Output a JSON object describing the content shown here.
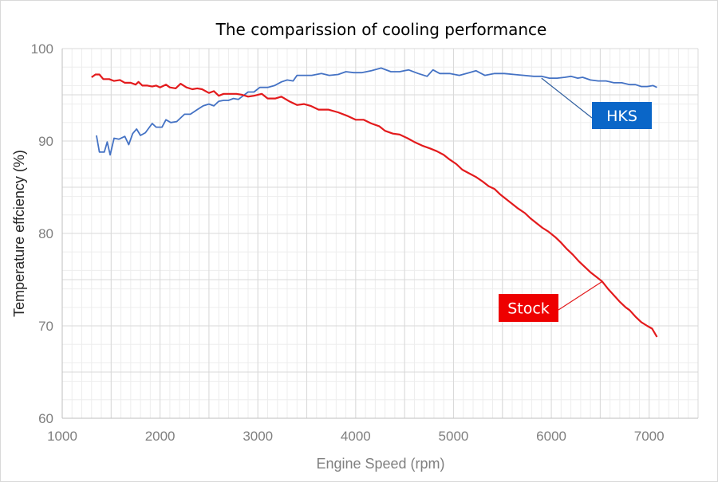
{
  "chart_data": {
    "type": "line",
    "title": "The comparission of cooling performance",
    "xlabel": "Engine Speed (rpm)",
    "ylabel": "Temperature effciency (%)",
    "xlim": [
      1000,
      7500
    ],
    "ylim": [
      60,
      100
    ],
    "x_ticks": [
      1000,
      2000,
      3000,
      4000,
      5000,
      6000,
      7000
    ],
    "y_ticks": [
      60,
      70,
      80,
      90,
      100
    ],
    "grid": true,
    "legend": "callouts",
    "series": [
      {
        "name": "HKS",
        "color": "#4472c4",
        "label_bg": "#0a66c8",
        "callout_anchor": [
          5900,
          96.8
        ],
        "points": [
          [
            1350,
            90.6
          ],
          [
            1380,
            88.8
          ],
          [
            1430,
            88.8
          ],
          [
            1460,
            89.9
          ],
          [
            1490,
            88.5
          ],
          [
            1530,
            90.3
          ],
          [
            1580,
            90.2
          ],
          [
            1640,
            90.5
          ],
          [
            1680,
            89.6
          ],
          [
            1720,
            90.8
          ],
          [
            1760,
            91.3
          ],
          [
            1800,
            90.6
          ],
          [
            1850,
            90.9
          ],
          [
            1920,
            91.9
          ],
          [
            1960,
            91.5
          ],
          [
            2020,
            91.5
          ],
          [
            2060,
            92.3
          ],
          [
            2110,
            92.0
          ],
          [
            2170,
            92.1
          ],
          [
            2250,
            92.9
          ],
          [
            2310,
            92.9
          ],
          [
            2380,
            93.4
          ],
          [
            2440,
            93.8
          ],
          [
            2500,
            94.0
          ],
          [
            2550,
            93.8
          ],
          [
            2600,
            94.3
          ],
          [
            2650,
            94.4
          ],
          [
            2700,
            94.4
          ],
          [
            2750,
            94.6
          ],
          [
            2800,
            94.5
          ],
          [
            2850,
            94.9
          ],
          [
            2900,
            95.3
          ],
          [
            2960,
            95.3
          ],
          [
            3020,
            95.8
          ],
          [
            3100,
            95.8
          ],
          [
            3170,
            96.0
          ],
          [
            3240,
            96.4
          ],
          [
            3300,
            96.6
          ],
          [
            3360,
            96.5
          ],
          [
            3400,
            97.1
          ],
          [
            3480,
            97.1
          ],
          [
            3550,
            97.1
          ],
          [
            3650,
            97.3
          ],
          [
            3730,
            97.1
          ],
          [
            3820,
            97.2
          ],
          [
            3900,
            97.5
          ],
          [
            3980,
            97.4
          ],
          [
            4060,
            97.4
          ],
          [
            4160,
            97.6
          ],
          [
            4260,
            97.9
          ],
          [
            4360,
            97.5
          ],
          [
            4450,
            97.5
          ],
          [
            4540,
            97.7
          ],
          [
            4640,
            97.3
          ],
          [
            4730,
            97.0
          ],
          [
            4790,
            97.7
          ],
          [
            4860,
            97.3
          ],
          [
            4960,
            97.3
          ],
          [
            5060,
            97.1
          ],
          [
            5160,
            97.4
          ],
          [
            5230,
            97.6
          ],
          [
            5320,
            97.1
          ],
          [
            5420,
            97.3
          ],
          [
            5520,
            97.3
          ],
          [
            5620,
            97.2
          ],
          [
            5720,
            97.1
          ],
          [
            5820,
            97.0
          ],
          [
            5900,
            97.0
          ],
          [
            5980,
            96.8
          ],
          [
            6060,
            96.8
          ],
          [
            6140,
            96.9
          ],
          [
            6200,
            97.0
          ],
          [
            6270,
            96.8
          ],
          [
            6320,
            96.9
          ],
          [
            6400,
            96.6
          ],
          [
            6480,
            96.5
          ],
          [
            6560,
            96.5
          ],
          [
            6640,
            96.3
          ],
          [
            6720,
            96.3
          ],
          [
            6800,
            96.1
          ],
          [
            6860,
            96.1
          ],
          [
            6920,
            95.9
          ],
          [
            6980,
            95.9
          ],
          [
            7040,
            96.0
          ],
          [
            7080,
            95.8
          ]
        ]
      },
      {
        "name": "Stock",
        "color": "#e31a1c",
        "label_bg": "#ee0000",
        "callout_anchor": [
          6520,
          74.8
        ],
        "points": [
          [
            1300,
            96.9
          ],
          [
            1340,
            97.2
          ],
          [
            1380,
            97.2
          ],
          [
            1420,
            96.7
          ],
          [
            1480,
            96.7
          ],
          [
            1530,
            96.5
          ],
          [
            1590,
            96.6
          ],
          [
            1640,
            96.3
          ],
          [
            1700,
            96.3
          ],
          [
            1750,
            96.1
          ],
          [
            1780,
            96.4
          ],
          [
            1820,
            96.0
          ],
          [
            1870,
            96.0
          ],
          [
            1920,
            95.9
          ],
          [
            1960,
            96.0
          ],
          [
            2000,
            95.8
          ],
          [
            2060,
            96.1
          ],
          [
            2100,
            95.8
          ],
          [
            2160,
            95.7
          ],
          [
            2210,
            96.2
          ],
          [
            2270,
            95.8
          ],
          [
            2330,
            95.6
          ],
          [
            2380,
            95.7
          ],
          [
            2430,
            95.6
          ],
          [
            2500,
            95.2
          ],
          [
            2550,
            95.4
          ],
          [
            2600,
            94.9
          ],
          [
            2650,
            95.1
          ],
          [
            2720,
            95.1
          ],
          [
            2780,
            95.1
          ],
          [
            2840,
            95.0
          ],
          [
            2900,
            94.8
          ],
          [
            2960,
            94.9
          ],
          [
            3040,
            95.1
          ],
          [
            3100,
            94.6
          ],
          [
            3180,
            94.6
          ],
          [
            3240,
            94.8
          ],
          [
            3320,
            94.3
          ],
          [
            3400,
            93.9
          ],
          [
            3470,
            94.0
          ],
          [
            3540,
            93.8
          ],
          [
            3620,
            93.4
          ],
          [
            3720,
            93.4
          ],
          [
            3820,
            93.1
          ],
          [
            3920,
            92.7
          ],
          [
            4000,
            92.3
          ],
          [
            4080,
            92.3
          ],
          [
            4160,
            91.9
          ],
          [
            4240,
            91.6
          ],
          [
            4300,
            91.1
          ],
          [
            4380,
            90.8
          ],
          [
            4450,
            90.7
          ],
          [
            4530,
            90.3
          ],
          [
            4600,
            89.9
          ],
          [
            4680,
            89.5
          ],
          [
            4760,
            89.2
          ],
          [
            4830,
            88.9
          ],
          [
            4900,
            88.5
          ],
          [
            4960,
            88.0
          ],
          [
            5030,
            87.5
          ],
          [
            5090,
            86.9
          ],
          [
            5160,
            86.5
          ],
          [
            5230,
            86.1
          ],
          [
            5300,
            85.6
          ],
          [
            5360,
            85.1
          ],
          [
            5420,
            84.8
          ],
          [
            5480,
            84.2
          ],
          [
            5540,
            83.7
          ],
          [
            5600,
            83.2
          ],
          [
            5660,
            82.7
          ],
          [
            5730,
            82.2
          ],
          [
            5790,
            81.6
          ],
          [
            5850,
            81.1
          ],
          [
            5910,
            80.6
          ],
          [
            5970,
            80.2
          ],
          [
            6040,
            79.6
          ],
          [
            6100,
            79.0
          ],
          [
            6160,
            78.3
          ],
          [
            6220,
            77.7
          ],
          [
            6280,
            77.0
          ],
          [
            6340,
            76.4
          ],
          [
            6400,
            75.8
          ],
          [
            6460,
            75.3
          ],
          [
            6520,
            74.8
          ],
          [
            6580,
            74.0
          ],
          [
            6640,
            73.3
          ],
          [
            6700,
            72.6
          ],
          [
            6760,
            72.0
          ],
          [
            6800,
            71.7
          ],
          [
            6860,
            71.0
          ],
          [
            6920,
            70.4
          ],
          [
            6980,
            70.0
          ],
          [
            7030,
            69.7
          ],
          [
            7080,
            68.8
          ]
        ]
      }
    ]
  }
}
